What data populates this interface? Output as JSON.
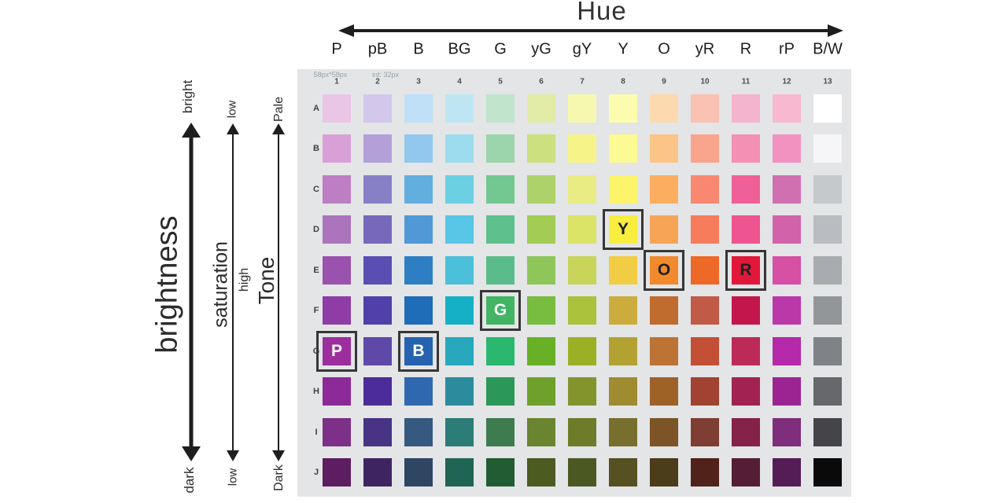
{
  "axes": {
    "brightness": {
      "label": "brightness",
      "top": "bright",
      "bottom": "dark"
    },
    "saturation": {
      "label": "saturation",
      "center": "high",
      "top": "low",
      "bottom": "low"
    },
    "tone": {
      "label": "Tone",
      "top": "Pale",
      "bottom": "Dark"
    }
  },
  "chart_data": {
    "type": "heatmap",
    "title": "Hue",
    "x_axis": {
      "label": "Hue",
      "categories": [
        "P",
        "pB",
        "B",
        "BG",
        "G",
        "yG",
        "gY",
        "Y",
        "O",
        "yR",
        "R",
        "rP",
        "B/W"
      ],
      "numbers": [
        "1",
        "2",
        "3",
        "4",
        "5",
        "6",
        "7",
        "8",
        "9",
        "10",
        "11",
        "12",
        "13"
      ]
    },
    "y_axis": {
      "categories": [
        "A",
        "B",
        "C",
        "D",
        "E",
        "F",
        "G",
        "H",
        "I",
        "J"
      ],
      "meaning": "tone from Pale (A) to Dark (J); brightness bright to dark; saturation low-high-low"
    },
    "annotations": {
      "cell_note": "58px*58px",
      "interval_note": "int: 32px"
    },
    "colors": [
      [
        "#eac6e6",
        "#d3c7ec",
        "#c0e0f8",
        "#bee6f2",
        "#c0e4cc",
        "#e2eca6",
        "#f6f8b0",
        "#fcfcae",
        "#fcd9ae",
        "#f9c2b2",
        "#f5b4ce",
        "#f8b8d0",
        "#ffffff"
      ],
      [
        "#d9a0d8",
        "#b3a0d8",
        "#92c8ee",
        "#9cdcee",
        "#9cd4ac",
        "#cce080",
        "#f6f488",
        "#fcfa92",
        "#fcc486",
        "#f9a48c",
        "#f490b4",
        "#f192c0",
        "#f6f6f8"
      ],
      [
        "#bd7ec4",
        "#8880c6",
        "#62aede",
        "#6cd0e2",
        "#72c890",
        "#aed26a",
        "#e9ec84",
        "#fcf46a",
        "#fcae60",
        "#f88870",
        "#f06098",
        "#d070b0",
        "#c6c9cc"
      ],
      [
        "#ac74bc",
        "#7868bc",
        "#5098d6",
        "#58c6e6",
        "#5ec08c",
        "#a2cc54",
        "#dce468",
        "#f8ee40",
        "#f8a456",
        "#f67c5c",
        "#ee5490",
        "#d262aa",
        "#b9bcc0"
      ],
      [
        "#9a52ae",
        "#5a4eb2",
        "#2e7ec4",
        "#4cc0d8",
        "#5abc8a",
        "#8ec65a",
        "#c8d45a",
        "#f2cc42",
        "#f08a2c",
        "#ee6828",
        "#e2183a",
        "#d650a4",
        "#a8abaf"
      ],
      [
        "#8f3ca6",
        "#5140aa",
        "#1f6cb8",
        "#16b0c6",
        "#42b464",
        "#78bc40",
        "#aac23c",
        "#ccac3c",
        "#c06c2e",
        "#c25a48",
        "#c2164c",
        "#bb38a8",
        "#939699"
      ],
      [
        "#9c2e9e",
        "#5e48a8",
        "#2562b0",
        "#28a8bc",
        "#2ab86e",
        "#68b026",
        "#9cb026",
        "#b2a232",
        "#bc7434",
        "#c24f36",
        "#bc2a58",
        "#b42aaa",
        "#7f8286"
      ],
      [
        "#8c2a9a",
        "#4c2c98",
        "#3068b0",
        "#2c8c9e",
        "#2c9858",
        "#70a02c",
        "#84942c",
        "#a08c30",
        "#9e6226",
        "#a24232",
        "#a22252",
        "#9c2492",
        "#66686c"
      ],
      [
        "#7c3088",
        "#483384",
        "#35597f",
        "#2c7c78",
        "#3e7c50",
        "#6a8430",
        "#6e7c2a",
        "#786f2e",
        "#7c5426",
        "#7e3e34",
        "#84224a",
        "#7e2e7a",
        "#454549"
      ],
      [
        "#5c1e60",
        "#3e2562",
        "#2e4662",
        "#1f6454",
        "#225c32",
        "#4c5c20",
        "#4c5822",
        "#565122",
        "#4b3c1a",
        "#50221a",
        "#551d36",
        "#551d56",
        "#0a0a0a"
      ]
    ],
    "highlights": [
      {
        "row": "D",
        "column": 8,
        "letter": "Y",
        "letter_color": "#1f1f1f"
      },
      {
        "row": "E",
        "column": 9,
        "letter": "O",
        "letter_color": "#1f1f1f"
      },
      {
        "row": "E",
        "column": 11,
        "letter": "R",
        "letter_color": "#1f1f1f"
      },
      {
        "row": "F",
        "column": 5,
        "letter": "G",
        "letter_color": "#ffffff"
      },
      {
        "row": "G",
        "column": 1,
        "letter": "P",
        "letter_color": "#ffffff"
      },
      {
        "row": "G",
        "column": 3,
        "letter": "B",
        "letter_color": "#ffffff"
      }
    ],
    "legend_position": "none",
    "grid": false
  }
}
